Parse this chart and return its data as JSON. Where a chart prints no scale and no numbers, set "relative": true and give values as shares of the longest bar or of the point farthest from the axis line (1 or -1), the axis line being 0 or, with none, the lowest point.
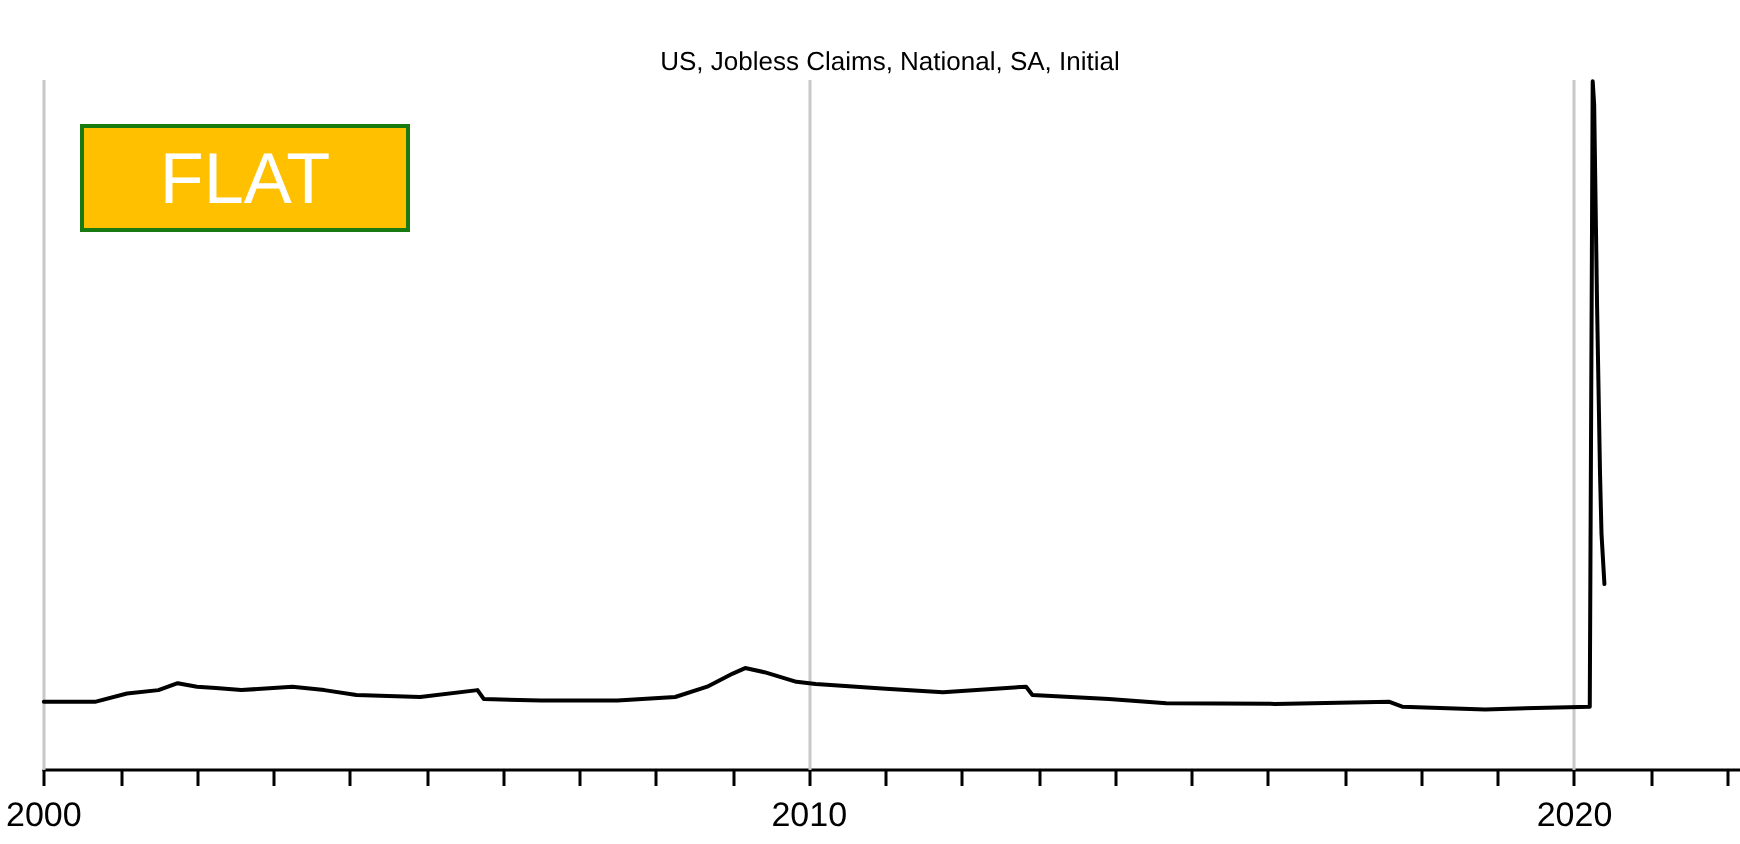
{
  "chart_data": {
    "type": "line",
    "title": "US, Jobless Claims, National, SA, Initial",
    "annotations": [
      "FLAT"
    ],
    "relative": true,
    "grid": "x",
    "xlim": [
      "2000",
      "2022-03"
    ],
    "xticks": [
      "2000",
      {
        "value": "2001",
        "label": null
      },
      {
        "value": "2002",
        "label": null
      },
      {
        "value": "2003",
        "label": null
      },
      {
        "value": "2004",
        "label": null
      },
      {
        "value": "2005",
        "label": null
      },
      {
        "value": "2006",
        "label": null
      },
      {
        "value": "2007",
        "label": null
      },
      {
        "value": "2008",
        "label": null
      },
      {
        "value": "2009",
        "label": null
      },
      "2010",
      {
        "value": "2011",
        "label": null
      },
      {
        "value": "2012",
        "label": null
      },
      {
        "value": "2013",
        "label": null
      },
      {
        "value": "2014",
        "label": null
      },
      {
        "value": "2015",
        "label": null
      },
      {
        "value": "2016",
        "label": null
      },
      {
        "value": "2017",
        "label": null
      },
      {
        "value": "2018",
        "label": null
      },
      {
        "value": "2019",
        "label": null
      },
      "2020",
      {
        "value": "2021",
        "label": null
      },
      {
        "value": "2022",
        "label": null
      }
    ],
    "x": [
      "2000-01",
      "2000-09",
      "2001-02",
      "2001-07",
      "2001-10",
      "2002-01",
      "2002-04",
      "2002-08",
      "2003-04",
      "2003-09",
      "2004-02",
      "2004-12",
      "2005-09",
      "2005-10",
      "2006-07",
      "2007-07",
      "2008-04",
      "2008-09",
      "2009-01",
      "2009-03",
      "2009-06",
      "2009-11",
      "2010-01",
      "2010-02",
      "2011-01",
      "2011-10",
      "2012-11",
      "2012-12",
      "2013-12",
      "2014-09",
      "2016-02",
      "2017-08",
      "2017-10",
      "2018-11",
      "2019-07",
      "2020-03-14",
      "2020-03-28",
      "2020-04-04",
      "2020-04-18",
      "2020-05-02",
      "2020-05-09",
      "2020-05-23"
    ],
    "series": [
      {
        "color": "#000000",
        "values": [
          0.099,
          0.099,
          0.111,
          0.116,
          0.126,
          0.121,
          0.119,
          0.116,
          0.121,
          0.116,
          0.109,
          0.106,
          0.116,
          0.103,
          0.101,
          0.101,
          0.106,
          0.121,
          0.14,
          0.148,
          0.142,
          0.128,
          0.126,
          0.125,
          0.118,
          0.113,
          0.121,
          0.109,
          0.103,
          0.097,
          0.096,
          0.099,
          0.092,
          0.088,
          0.09,
          0.092,
          1.0,
          0.966,
          0.672,
          0.43,
          0.343,
          0.27
        ]
      }
    ]
  }
}
